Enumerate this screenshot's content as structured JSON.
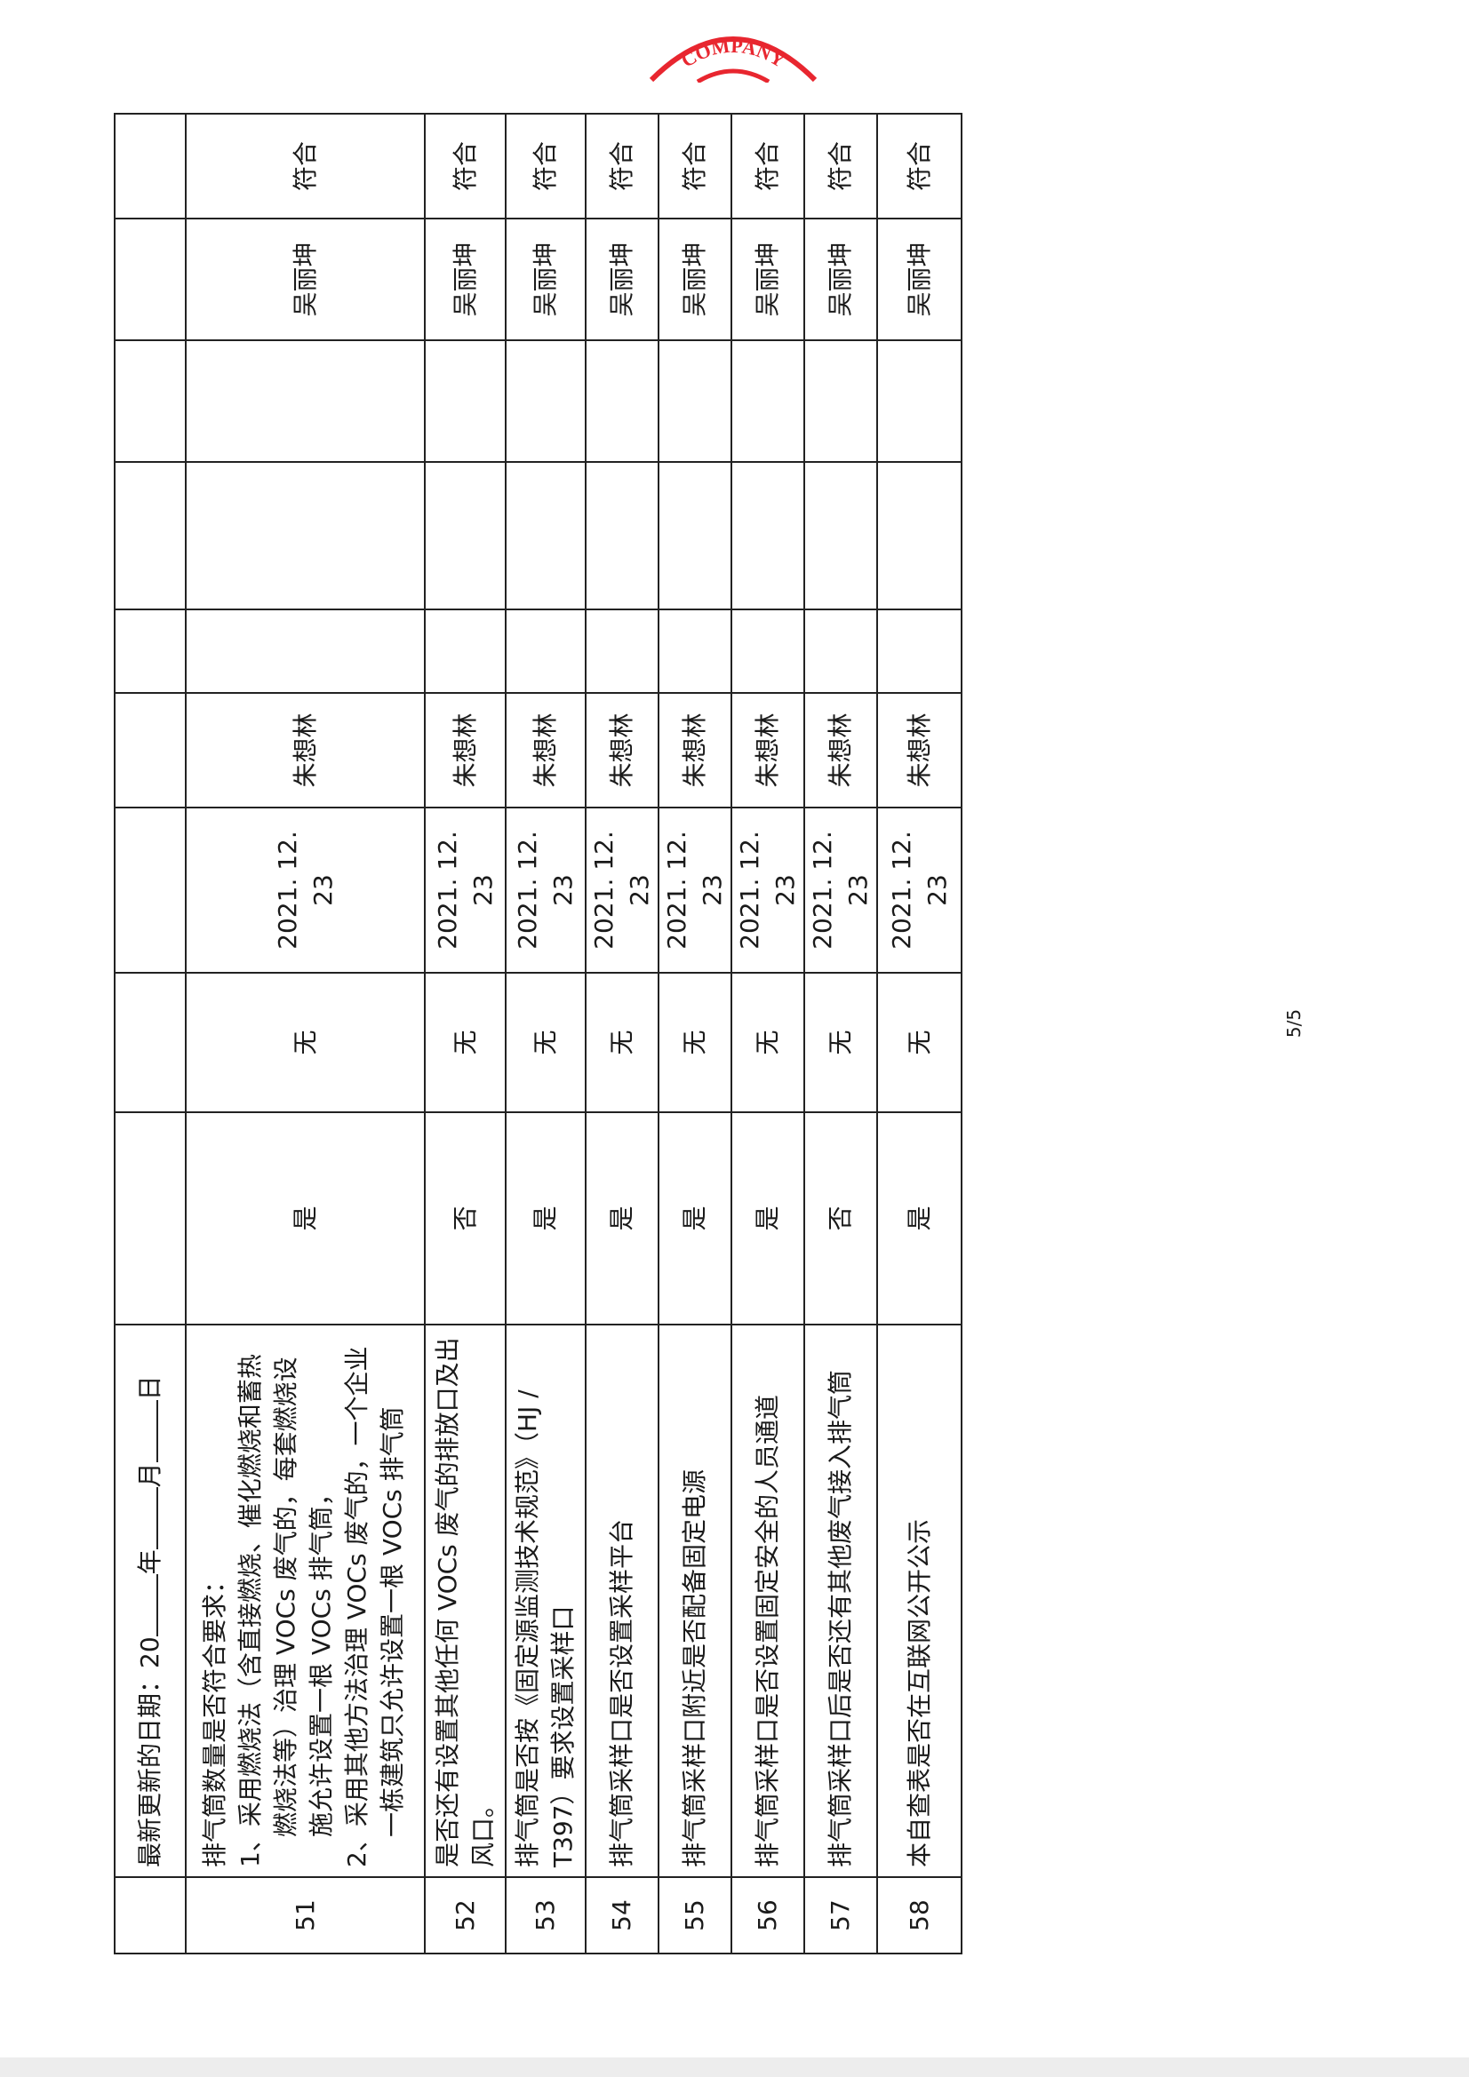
{
  "stamp": {
    "text": "COMPANY",
    "color": "#e8262f"
  },
  "header": {
    "label": "最新更新的日期：20",
    "year": "年",
    "month": "月",
    "day": "日"
  },
  "row51": {
    "no": "51",
    "title": "排气筒数量是否符合要求：",
    "point1": "1、采用燃烧法（含直接燃烧、催化燃烧和蓄热燃烧法等）治理 VOCs 废气的，每套燃烧设施允许设置一根 VOCs 排气筒，",
    "point2": "2、采用其他方法治理 VOCs 废气的，一个企业一栋建筑只允许设置一根 VOCs 排气筒",
    "answer": "是",
    "measure": "无",
    "date": "2021. 12. 23",
    "person": "朱想林",
    "reviewer": "吴丽坤",
    "result": "符合"
  },
  "rows": [
    {
      "no": "52",
      "item": "是否还有设置其他任何 VOCs 废气的排放口及出风口。",
      "answer": "否",
      "measure": "无",
      "date": "2021. 12. 23",
      "person": "朱想林",
      "reviewer": "吴丽坤",
      "result": "符合"
    },
    {
      "no": "53",
      "item": "排气筒是否按《固定源监测技术规范》（HJ / T397）要求设置采样口",
      "answer": "是",
      "measure": "无",
      "date": "2021. 12. 23",
      "person": "朱想林",
      "reviewer": "吴丽坤",
      "result": "符合"
    },
    {
      "no": "54",
      "item": "排气筒采样口是否设置采样平台",
      "answer": "是",
      "measure": "无",
      "date": "2021. 12. 23",
      "person": "朱想林",
      "reviewer": "吴丽坤",
      "result": "符合"
    },
    {
      "no": "55",
      "item": "排气筒采样口附近是否配备固定电源",
      "answer": "是",
      "measure": "无",
      "date": "2021. 12. 23",
      "person": "朱想林",
      "reviewer": "吴丽坤",
      "result": "符合"
    },
    {
      "no": "56",
      "item": "排气筒采样口是否设置固定安全的人员通道",
      "answer": "是",
      "measure": "无",
      "date": "2021. 12. 23",
      "person": "朱想林",
      "reviewer": "吴丽坤",
      "result": "符合"
    },
    {
      "no": "57",
      "item": "排气筒采样口后是否还有其他废气接入排气筒",
      "answer": "否",
      "measure": "无",
      "date": "2021. 12. 23",
      "person": "朱想林",
      "reviewer": "吴丽坤",
      "result": "符合"
    },
    {
      "no": "58",
      "item": "本自查表是否在互联网公开公示",
      "answer": "是",
      "measure": "无",
      "date": "2021. 12. 23",
      "person": "朱想林",
      "reviewer": "吴丽坤",
      "result": "符合"
    }
  ],
  "footer": {
    "page": "5/5"
  }
}
